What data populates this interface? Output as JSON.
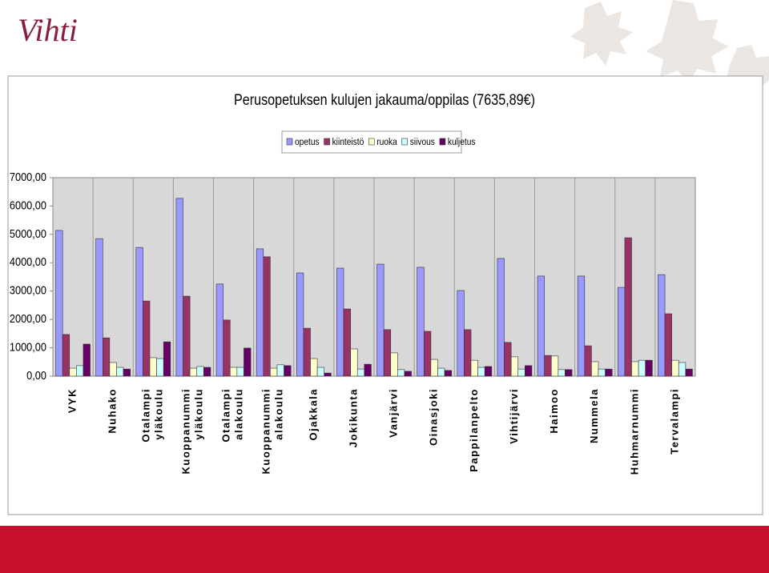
{
  "logo": "Vihti",
  "chart_data": {
    "type": "bar",
    "title": "Perusopetuksen kulujen jakauma/oppilas (7635,89€)",
    "categories": [
      "VYK",
      "Nuhako",
      "Otalampi yläkoulu",
      "Kuoppanummi yläkoulu",
      "Otalampi alakoulu",
      "Kuoppanummi alakoulu",
      "Ojakkala",
      "Jokikunta",
      "Vanjärvi",
      "Oinasjoki",
      "Pappilanpelto",
      "Vihtijärvi",
      "Haimoo",
      "Nummela",
      "Huhmarnummi",
      "Tervalampi"
    ],
    "series": [
      {
        "name": "opetus",
        "color": "#9999ff",
        "values": [
          5140,
          4850,
          4540,
          6270,
          3250,
          4490,
          3640,
          3810,
          3950,
          3840,
          3020,
          4150,
          3530,
          3530,
          3130,
          3580
        ]
      },
      {
        "name": "kiinteistö",
        "color": "#993366",
        "values": [
          1470,
          1350,
          2650,
          2820,
          1980,
          4210,
          1690,
          2370,
          1640,
          1580,
          1640,
          1190,
          730,
          1070,
          4880,
          2200
        ]
      },
      {
        "name": "ruoka",
        "color": "#ffffcc",
        "values": [
          280,
          480,
          650,
          280,
          310,
          280,
          620,
          960,
          820,
          590,
          560,
          680,
          710,
          510,
          510,
          560
        ]
      },
      {
        "name": "siivous",
        "color": "#ccffff",
        "values": [
          370,
          310,
          620,
          340,
          310,
          400,
          310,
          250,
          230,
          280,
          310,
          250,
          230,
          250,
          560,
          480
        ]
      },
      {
        "name": "kuljetus",
        "color": "#660066",
        "values": [
          1130,
          250,
          1210,
          310,
          990,
          370,
          110,
          420,
          170,
          200,
          340,
          370,
          230,
          250,
          560,
          250
        ]
      }
    ],
    "ylim": [
      0,
      7000
    ],
    "yticks": [
      {
        "value": 0,
        "label": "0,00"
      },
      {
        "value": 1000,
        "label": "1000,00"
      },
      {
        "value": 2000,
        "label": "2000,00"
      },
      {
        "value": 3000,
        "label": "3000,00"
      },
      {
        "value": 4000,
        "label": "4000,00"
      },
      {
        "value": 5000,
        "label": "5000,00"
      },
      {
        "value": 6000,
        "label": "6000,00"
      },
      {
        "value": 7000,
        "label": "7000,00"
      }
    ],
    "legend": "top"
  }
}
